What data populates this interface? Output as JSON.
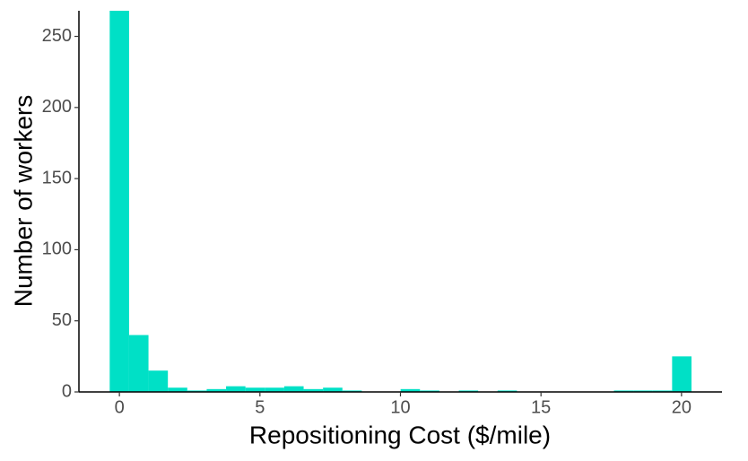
{
  "chart_data": {
    "type": "histogram",
    "x_label": "Repositioning Cost ($/mile)",
    "y_label": "Number of workers",
    "bins": [
      -0.345,
      0.345,
      1.035,
      1.725,
      2.415,
      3.105,
      3.795,
      4.485,
      5.175,
      5.865,
      6.555,
      7.245,
      7.935,
      8.625,
      9.315,
      10.005,
      10.695,
      11.385,
      12.075,
      12.765,
      13.455,
      14.145,
      14.835,
      15.525,
      16.215,
      16.905,
      17.595,
      18.285,
      18.975,
      19.665,
      20.355
    ],
    "values": [
      268,
      40,
      15,
      3,
      1,
      2,
      4,
      3,
      3,
      4,
      2,
      3,
      1,
      0,
      0,
      2,
      1,
      0,
      1,
      0,
      1,
      0,
      0,
      0,
      0,
      0,
      1,
      1,
      1,
      25
    ],
    "color": "#00e0c6",
    "xlim": [
      -1.44,
      21.44
    ],
    "xticks": [
      0,
      5,
      10,
      15,
      20
    ],
    "ylim": [
      0,
      268
    ],
    "yticks": [
      0,
      50,
      100,
      150,
      200,
      250
    ],
    "grid": false
  }
}
